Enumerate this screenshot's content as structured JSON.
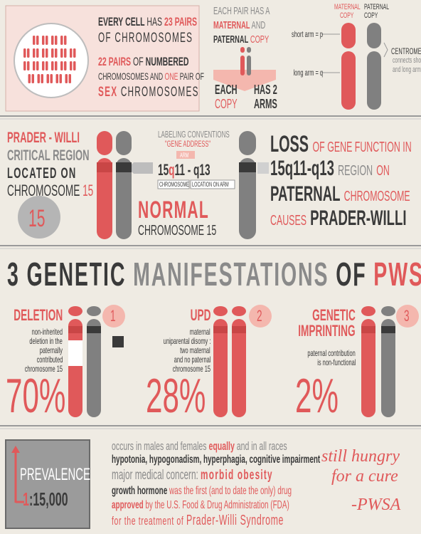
{
  "cell_panel": {
    "line1": [
      "EVERY CELL",
      "HAS",
      "23 PAIRS"
    ],
    "line2": "OF CHROMOSOMES",
    "line3": [
      "22 PAIRS",
      "OF",
      "NUMBERED"
    ],
    "line4": [
      "CHROMOSOMES AND",
      "ONE",
      "PAIR OF"
    ],
    "line5": [
      "SEX",
      "CHROMOSOMES"
    ]
  },
  "pair_panel": {
    "line1": "EACH PAIR HAS A",
    "line2": [
      "MATERNAL",
      "AND"
    ],
    "line3": [
      "PATERNAL",
      "COPY"
    ],
    "each_copy": [
      "EACH",
      "COPY"
    ],
    "has_arms": [
      "HAS 2",
      "ARMS"
    ]
  },
  "arms_panel": {
    "maternal": [
      "MATERNAL",
      "COPY"
    ],
    "paternal": [
      "PATERNAL",
      "COPY"
    ],
    "short_arm": "short arm = p",
    "long_arm": "long arm = q",
    "centromere": "CENTROMERE",
    "centromere_note": [
      "connects short",
      "and long arms"
    ]
  },
  "region_panel": {
    "heading": [
      "PRADER - WILLI",
      "CRITICAL REGION",
      "LOCATED ON"
    ],
    "chromosome_line": [
      "CHROMOSOME",
      "15"
    ],
    "badge": "15",
    "labeling": "LABELING CONVENTIONS",
    "gene_address": "\"GENE ADDRESS\"",
    "arm": "ARM",
    "address": [
      "15",
      "q",
      "11 - q13"
    ],
    "chromosome_tag": "CHROMOSOME",
    "location_tag": "LOCATION ON ARM",
    "normal": "NORMAL",
    "normal_sub": "CHROMOSOME 15"
  },
  "loss_panel": {
    "line1": [
      "LOSS",
      "OF GENE FUNCTION IN"
    ],
    "line2": [
      "15q11-q13",
      "REGION",
      "ON"
    ],
    "line3": [
      "PATERNAL",
      "CHROMOSOME"
    ],
    "line4": [
      "CAUSES",
      "PRADER-WILLI"
    ]
  },
  "title": [
    "3",
    "GENETIC",
    "MANIFESTATIONS",
    "OF",
    "PWS"
  ],
  "manifestations": [
    {
      "number": "1",
      "name": [
        "DELETION"
      ],
      "description": [
        "non-inherited",
        "deletion in the",
        "paternally",
        "contributed",
        "chromosome 15"
      ],
      "share": "70%"
    },
    {
      "number": "2",
      "name": [
        "UPD"
      ],
      "description": [
        "maternal",
        "uniparental disomy :",
        "two maternal",
        "and no paternal",
        "chromosome 15"
      ],
      "share": "28%"
    },
    {
      "number": "3",
      "name": [
        "GENETIC",
        "IMPRINTING"
      ],
      "description": [
        "paternal contribution",
        "is non-functional"
      ],
      "share": "2%"
    }
  ],
  "prevalence": {
    "label": "PREVALENCE",
    "ratio": [
      "1",
      ":15,000"
    ]
  },
  "facts": {
    "line1": [
      "occurs in males and females",
      "equally",
      "and in all races"
    ],
    "line2": "hypotonia, hypogonadism, hyperphagia, cognitive impairment",
    "line3": [
      "major medical concern:",
      "morbid obesity"
    ],
    "line4": [
      "growth hormone",
      "was the first (and to date the only) drug"
    ],
    "line5": [
      "approved",
      "by the U.S. Food & Drug Administration (FDA)"
    ],
    "line6": [
      "for the treatment of",
      "Prader-Willi Syndrome"
    ]
  },
  "quote": [
    "still hungry",
    "for a cure",
    "-PWSA"
  ]
}
